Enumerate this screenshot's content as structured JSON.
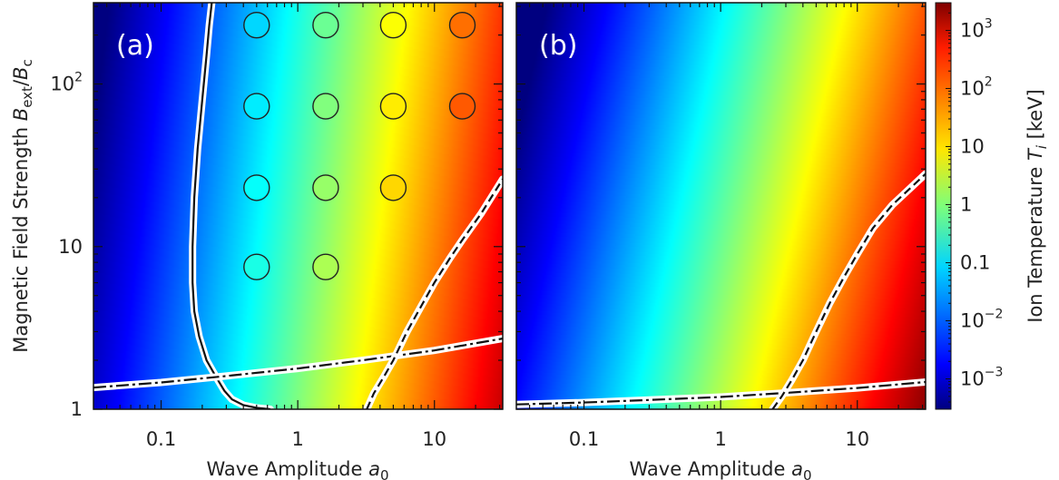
{
  "chart_data": [
    {
      "type": "heatmap",
      "panel_label": "(a)",
      "x_scale": "log",
      "y_scale": "log",
      "xlim": [
        0.032,
        31.6
      ],
      "ylim": [
        1,
        316
      ],
      "xlabel_text": "Wave Amplitude ",
      "xlabel_sym": "a",
      "xlabel_sub": "0",
      "ylabel_text": "Magnetic Field Strength ",
      "ylabel_sym": "B",
      "ylabel_sub1": "ext",
      "ylabel_mid": "/",
      "ylabel_sym2": "B",
      "ylabel_sub2": "c",
      "x_ticks": [
        {
          "value": 0.1,
          "label": "0.1"
        },
        {
          "value": 1,
          "label": "1"
        },
        {
          "value": 10,
          "label": "10"
        }
      ],
      "y_ticks": [
        {
          "value": 1,
          "label": "1",
          "sup": ""
        },
        {
          "value": 10,
          "label": "10",
          "sup": ""
        },
        {
          "value": 100,
          "label": "10",
          "sup": "2"
        }
      ],
      "field": {
        "description_free": true,
        "log10_T_at_origin": -3.0,
        "slope_logx": 2.0,
        "slope_logy": -0.3
      },
      "points": [
        {
          "x": 0.5,
          "y": 7.5
        },
        {
          "x": 1.6,
          "y": 7.5
        },
        {
          "x": 0.5,
          "y": 23
        },
        {
          "x": 1.6,
          "y": 23
        },
        {
          "x": 5,
          "y": 23
        },
        {
          "x": 0.5,
          "y": 73
        },
        {
          "x": 1.6,
          "y": 73
        },
        {
          "x": 5,
          "y": 73
        },
        {
          "x": 16,
          "y": 73
        },
        {
          "x": 0.5,
          "y": 230
        },
        {
          "x": 1.6,
          "y": 230
        },
        {
          "x": 5,
          "y": 230
        },
        {
          "x": 16,
          "y": 230
        }
      ],
      "curves": [
        {
          "style": "solid",
          "points": [
            [
              0.63,
              1.0
            ],
            [
              0.5,
              1.02
            ],
            [
              0.4,
              1.06
            ],
            [
              0.33,
              1.15
            ],
            [
              0.29,
              1.3
            ],
            [
              0.25,
              1.6
            ],
            [
              0.215,
              2.0
            ],
            [
              0.19,
              2.8
            ],
            [
              0.175,
              4.0
            ],
            [
              0.17,
              6.0
            ],
            [
              0.17,
              10
            ],
            [
              0.175,
              20
            ],
            [
              0.185,
              40
            ],
            [
              0.2,
              80
            ],
            [
              0.215,
              150
            ],
            [
              0.225,
              230
            ],
            [
              0.235,
              316
            ]
          ]
        },
        {
          "style": "dashdot",
          "points": [
            [
              0.032,
              1.36
            ],
            [
              0.1,
              1.46
            ],
            [
              0.3,
              1.6
            ],
            [
              1,
              1.78
            ],
            [
              3,
              2.0
            ],
            [
              10,
              2.3
            ],
            [
              31.6,
              2.72
            ]
          ]
        },
        {
          "style": "dashed",
          "points": [
            [
              3.2,
              1.0
            ],
            [
              3.6,
              1.25
            ],
            [
              4.3,
              1.6
            ],
            [
              5,
              2.0
            ],
            [
              6.3,
              3.0
            ],
            [
              8,
              4.3
            ],
            [
              10,
              6.0
            ],
            [
              13,
              8.5
            ],
            [
              16,
              11
            ],
            [
              22,
              16
            ],
            [
              31.6,
              26
            ]
          ]
        }
      ]
    },
    {
      "type": "heatmap",
      "panel_label": "(b)",
      "x_scale": "log",
      "y_scale": "log",
      "xlim": [
        0.032,
        31.6
      ],
      "ylim": [
        1,
        316
      ],
      "xlabel_text": "Wave Amplitude ",
      "xlabel_sym": "a",
      "xlabel_sub": "0",
      "x_ticks": [
        {
          "value": 0.1,
          "label": "0.1"
        },
        {
          "value": 1,
          "label": "1"
        },
        {
          "value": 10,
          "label": "10"
        }
      ],
      "field": {
        "log10_T_at_origin": -2.6,
        "slope_logx": 2.0,
        "slope_logy": -0.55
      },
      "points": [],
      "curves": [
        {
          "style": "dashdot",
          "points": [
            [
              0.032,
              1.07
            ],
            [
              0.1,
              1.1
            ],
            [
              0.3,
              1.14
            ],
            [
              1,
              1.19
            ],
            [
              3,
              1.26
            ],
            [
              10,
              1.35
            ],
            [
              31.6,
              1.47
            ]
          ]
        },
        {
          "style": "dashed",
          "points": [
            [
              2.4,
              1.0
            ],
            [
              2.8,
              1.2
            ],
            [
              3.3,
              1.5
            ],
            [
              4,
              2.0
            ],
            [
              5,
              3.0
            ],
            [
              6.3,
              4.5
            ],
            [
              8,
              6.5
            ],
            [
              10,
              9
            ],
            [
              13,
              13
            ],
            [
              18,
              18
            ],
            [
              31.6,
              28
            ]
          ]
        }
      ]
    }
  ],
  "colorbar": {
    "scale": "log",
    "range": [
      0.0003,
      3000
    ],
    "label_text": "Ion Temperature ",
    "label_sym": "T",
    "label_sub": "i",
    "label_unit": " [keV]",
    "ticks": [
      {
        "value": 0.001,
        "label": "10",
        "sup": "−3"
      },
      {
        "value": 0.01,
        "label": "10",
        "sup": "−2"
      },
      {
        "value": 0.1,
        "label": "0.1",
        "sup": ""
      },
      {
        "value": 1,
        "label": "1",
        "sup": ""
      },
      {
        "value": 10,
        "label": "10",
        "sup": ""
      },
      {
        "value": 100,
        "label": "10",
        "sup": "2"
      },
      {
        "value": 1000,
        "label": "10",
        "sup": "3"
      }
    ],
    "colormap": "jet"
  }
}
